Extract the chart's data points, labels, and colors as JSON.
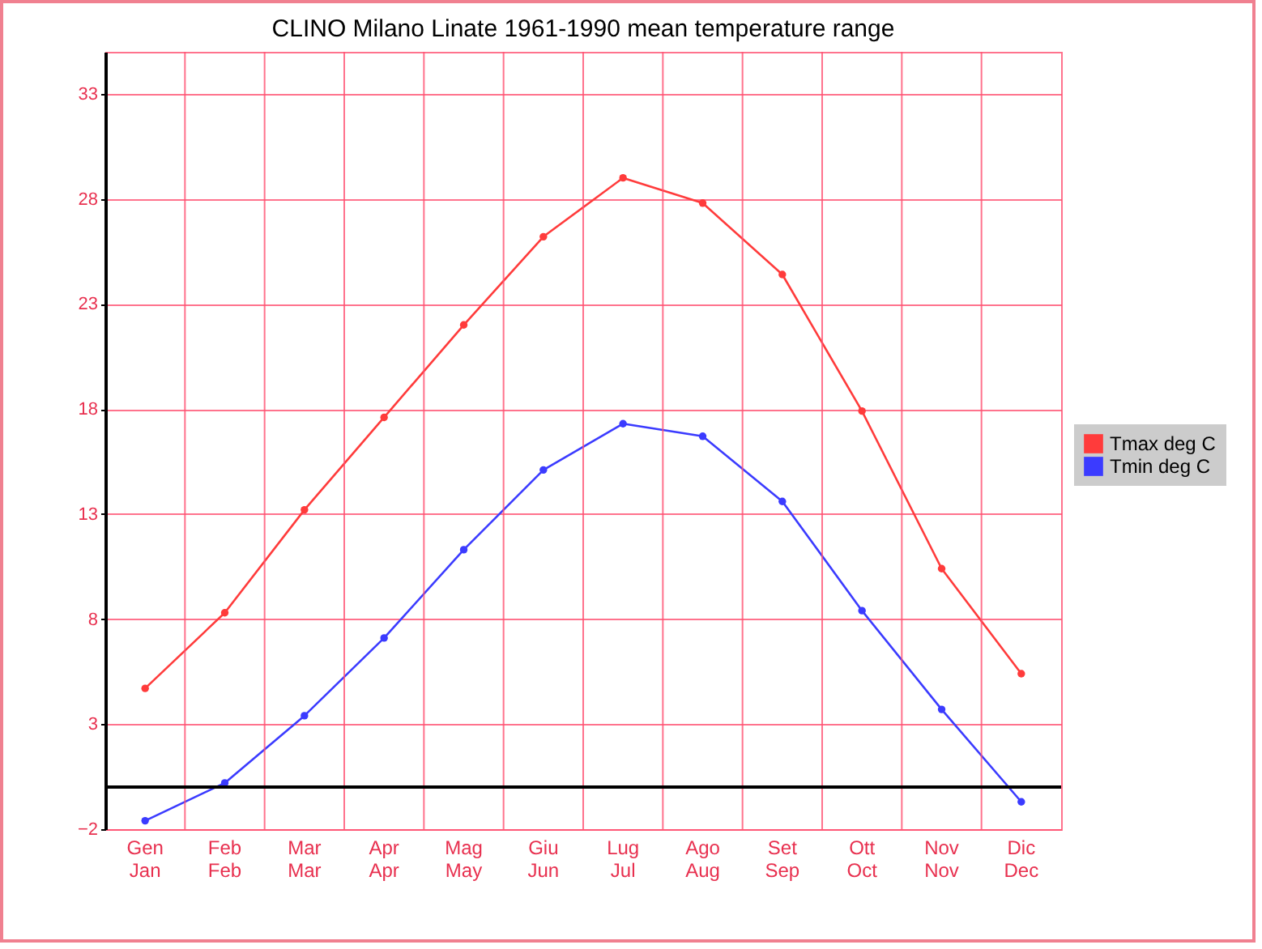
{
  "chart_data": {
    "type": "line",
    "title": "CLINO Milano Linate 1961-1990 mean temperature range",
    "categories": [
      "Gen\nJan",
      "Feb\nFeb",
      "Mar\nMar",
      "Apr\nApr",
      "Mag\nMay",
      "Giu\nJun",
      "Lug\nJul",
      "Ago\nAug",
      "Set\nSep",
      "Ott\nOct",
      "Nov\nNov",
      "Dic\nDec"
    ],
    "series": [
      {
        "name": "Tmax deg C",
        "color": "#ff3b3b",
        "values": [
          4.7,
          8.3,
          13.2,
          17.6,
          22.0,
          26.2,
          29.0,
          27.8,
          24.4,
          17.9,
          10.4,
          5.4
        ]
      },
      {
        "name": "Tmin deg C",
        "color": "#3b3bff",
        "values": [
          -1.6,
          0.2,
          3.4,
          7.1,
          11.3,
          15.1,
          17.3,
          16.7,
          13.6,
          8.4,
          3.7,
          -0.7
        ]
      }
    ],
    "ylim": [
      -2,
      35
    ],
    "yticks": [
      -2,
      3,
      8,
      13,
      18,
      23,
      28,
      33
    ],
    "grid": true,
    "legend": "right",
    "marker": "circle",
    "line_style": "solid",
    "ref_lines": [
      {
        "axis": "y",
        "value": 0,
        "color": "#000000"
      }
    ]
  }
}
